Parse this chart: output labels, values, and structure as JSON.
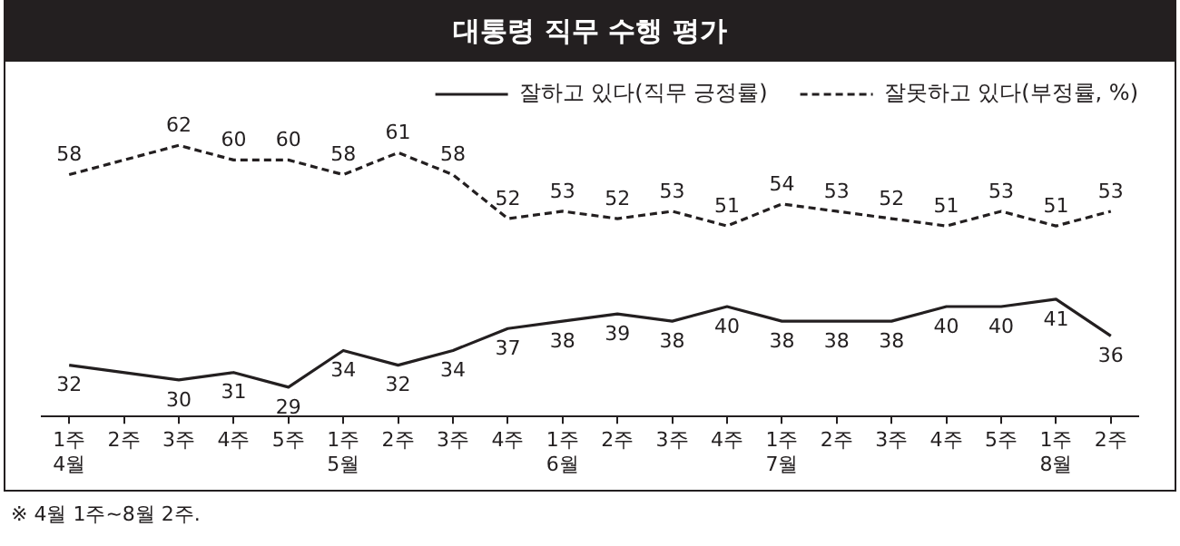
{
  "chart_data": {
    "type": "line",
    "title": "대통령 직무 수행 평가",
    "categories": [
      "1주\n4월",
      "2주",
      "3주",
      "4주",
      "5주",
      "1주\n5월",
      "2주",
      "3주",
      "4주",
      "1주\n6월",
      "2주",
      "3주",
      "4주",
      "1주\n7월",
      "2주",
      "3주",
      "4주",
      "5주",
      "1주\n8월",
      "2주"
    ],
    "series": [
      {
        "name": "잘하고 있다(직무 긍정률)",
        "color": "#231f20",
        "line_style": "solid",
        "values": [
          32,
          null,
          30,
          31,
          29,
          34,
          32,
          34,
          37,
          38,
          39,
          38,
          40,
          38,
          38,
          38,
          40,
          40,
          41,
          36
        ]
      },
      {
        "name": "잘못하고 있다(부정률, %)",
        "color": "#231f20",
        "line_style": "dashed",
        "values": [
          58,
          null,
          62,
          60,
          60,
          58,
          61,
          58,
          52,
          53,
          52,
          53,
          51,
          54,
          53,
          52,
          51,
          53,
          51,
          53
        ]
      }
    ],
    "tick_labels": "x",
    "data_labels": true,
    "legend": "top right",
    "marker": "none",
    "grid": false,
    "annotations": [
      "※ 4월 1주~8월 2주."
    ]
  }
}
